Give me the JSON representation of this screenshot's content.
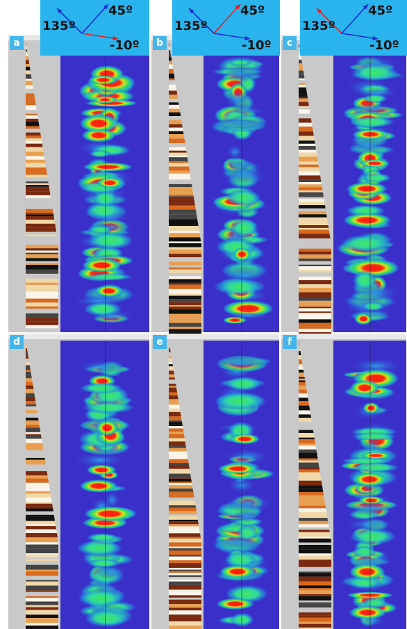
{
  "panels": [
    {
      "label": "a"
    },
    {
      "label": "b"
    },
    {
      "label": "c"
    },
    {
      "label": "d"
    },
    {
      "label": "e"
    },
    {
      "label": "f"
    }
  ],
  "legends": [
    {
      "angles": [
        "135º",
        "45º",
        "-10º"
      ]
    },
    {
      "angles": [
        "135º",
        "45º",
        "-10º"
      ]
    },
    {
      "angles": [
        "135º",
        "45º",
        "-10º"
      ]
    }
  ]
}
